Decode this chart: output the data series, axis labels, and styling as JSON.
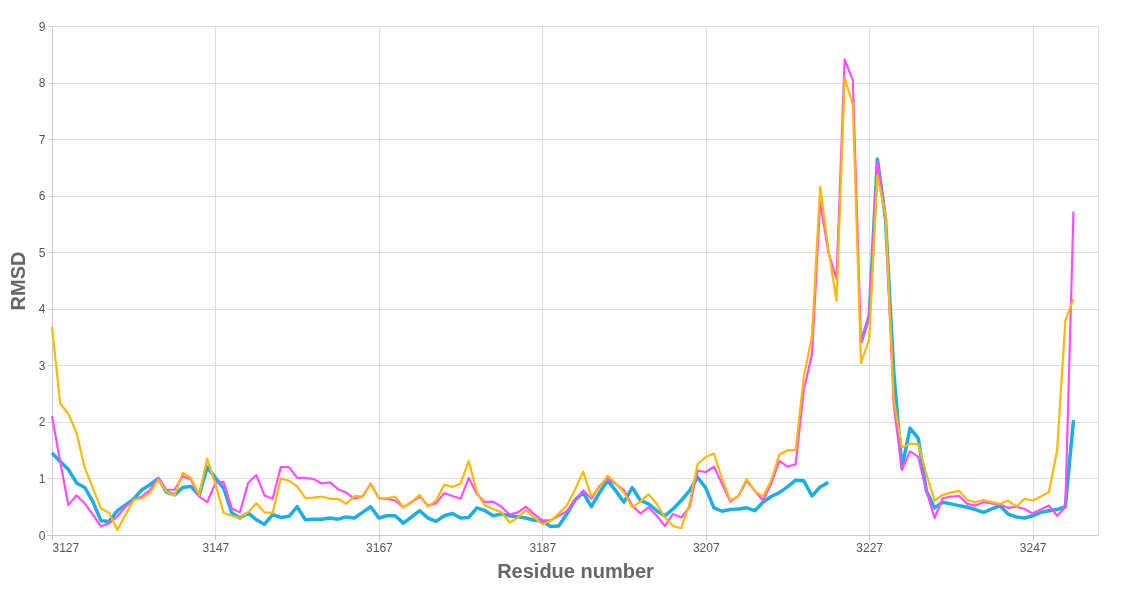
{
  "chart_data": {
    "type": "line",
    "xlabel": "Residue number",
    "ylabel": "RMSD",
    "x": [
      3127,
      3128,
      3129,
      3130,
      3131,
      3132,
      3133,
      3134,
      3135,
      3136,
      3137,
      3138,
      3139,
      3140,
      3141,
      3142,
      3143,
      3144,
      3145,
      3146,
      3147,
      3148,
      3149,
      3150,
      3151,
      3152,
      3153,
      3154,
      3155,
      3156,
      3157,
      3158,
      3159,
      3160,
      3161,
      3162,
      3163,
      3164,
      3165,
      3166,
      3167,
      3168,
      3169,
      3170,
      3171,
      3172,
      3173,
      3174,
      3175,
      3176,
      3177,
      3178,
      3179,
      3180,
      3181,
      3182,
      3183,
      3184,
      3185,
      3186,
      3187,
      3188,
      3189,
      3190,
      3191,
      3192,
      3193,
      3194,
      3195,
      3196,
      3197,
      3198,
      3199,
      3200,
      3201,
      3202,
      3203,
      3204,
      3205,
      3206,
      3207,
      3208,
      3209,
      3210,
      3211,
      3212,
      3213,
      3214,
      3215,
      3216,
      3217,
      3218,
      3219,
      3220,
      3221,
      3222,
      3223,
      3224,
      3225,
      3226,
      3227,
      3228,
      3229,
      3230,
      3231,
      3232,
      3233,
      3234,
      3235,
      3236,
      3237,
      3238,
      3239,
      3240,
      3241,
      3242,
      3243,
      3244,
      3245,
      3246,
      3247,
      3248,
      3249,
      3250,
      3251,
      3252
    ],
    "series": [
      {
        "color": "#1aaee6",
        "values": [
          1.45,
          1.3,
          1.16,
          0.92,
          0.84,
          0.59,
          0.25,
          0.24,
          0.43,
          0.53,
          0.64,
          0.8,
          0.89,
          1.0,
          0.76,
          0.71,
          0.84,
          0.86,
          0.7,
          1.2,
          1.01,
          0.83,
          0.39,
          0.3,
          0.39,
          0.27,
          0.19,
          0.36,
          0.31,
          0.33,
          0.5,
          0.27,
          0.28,
          0.28,
          0.3,
          0.28,
          0.32,
          0.3,
          0.4,
          0.5,
          0.3,
          0.34,
          0.34,
          0.21,
          0.32,
          0.43,
          0.3,
          0.24,
          0.34,
          0.38,
          0.3,
          0.31,
          0.48,
          0.43,
          0.34,
          0.37,
          0.34,
          0.32,
          0.3,
          0.26,
          0.25,
          0.15,
          0.16,
          0.37,
          0.62,
          0.75,
          0.5,
          0.75,
          0.96,
          0.78,
          0.58,
          0.84,
          0.61,
          0.55,
          0.43,
          0.34,
          0.46,
          0.61,
          0.78,
          1.02,
          0.83,
          0.48,
          0.42,
          0.45,
          0.46,
          0.48,
          0.43,
          0.58,
          0.68,
          0.75,
          0.85,
          0.97,
          0.96,
          0.69,
          0.85,
          0.93,
          null,
          null,
          null,
          3.4,
          3.87,
          6.65,
          5.59,
          2.9,
          1.19,
          1.89,
          1.71,
          0.78,
          0.48,
          0.58,
          0.55,
          0.52,
          0.49,
          0.45,
          0.4,
          0.46,
          0.52,
          0.37,
          0.32,
          0.3,
          0.34,
          0.4,
          0.43,
          0.45,
          0.5,
          2.03
        ]
      },
      {
        "color": "#ff4dff",
        "values": [
          2.1,
          1.3,
          0.53,
          0.7,
          0.56,
          0.36,
          0.15,
          0.21,
          0.33,
          0.5,
          0.62,
          0.68,
          0.8,
          1.01,
          0.8,
          0.8,
          1.04,
          0.98,
          0.68,
          0.58,
          0.92,
          0.94,
          0.47,
          0.4,
          0.92,
          1.06,
          0.7,
          0.64,
          1.2,
          1.2,
          1.01,
          1.01,
          0.99,
          0.91,
          0.93,
          0.81,
          0.75,
          0.64,
          0.68,
          0.91,
          0.65,
          0.64,
          0.61,
          0.49,
          0.58,
          0.68,
          0.52,
          0.56,
          0.74,
          0.69,
          0.64,
          1.01,
          0.72,
          0.58,
          0.59,
          0.5,
          0.36,
          0.4,
          0.5,
          0.37,
          0.26,
          0.26,
          0.34,
          0.42,
          0.61,
          0.79,
          0.64,
          0.87,
          0.99,
          0.9,
          0.79,
          0.52,
          0.38,
          0.49,
          0.34,
          0.16,
          0.37,
          0.31,
          0.49,
          1.14,
          1.11,
          1.21,
          0.9,
          0.59,
          0.69,
          0.96,
          0.78,
          0.61,
          0.9,
          1.31,
          1.21,
          1.25,
          2.57,
          3.19,
          5.89,
          5.0,
          4.53,
          8.41,
          8.04,
          3.4,
          3.87,
          6.6,
          5.6,
          2.3,
          1.15,
          1.48,
          1.38,
          0.78,
          0.3,
          0.65,
          0.68,
          0.69,
          0.55,
          0.52,
          0.58,
          0.56,
          0.54,
          0.48,
          0.5,
          0.46,
          0.38,
          0.45,
          0.52,
          0.34,
          0.49,
          5.72
        ]
      },
      {
        "color": "#ffb900",
        "values": [
          3.68,
          2.33,
          2.14,
          1.81,
          1.19,
          0.83,
          0.47,
          0.39,
          0.09,
          0.36,
          0.62,
          0.65,
          0.74,
          0.98,
          0.77,
          0.7,
          1.1,
          1.01,
          0.71,
          1.35,
          0.89,
          0.39,
          0.34,
          0.3,
          0.4,
          0.56,
          0.4,
          0.39,
          1.0,
          0.96,
          0.86,
          0.65,
          0.66,
          0.68,
          0.64,
          0.64,
          0.55,
          0.69,
          0.68,
          0.9,
          0.65,
          0.65,
          0.68,
          0.49,
          0.59,
          0.71,
          0.5,
          0.61,
          0.89,
          0.85,
          0.91,
          1.31,
          0.75,
          0.52,
          0.46,
          0.4,
          0.22,
          0.3,
          0.44,
          0.31,
          0.19,
          0.25,
          0.38,
          0.52,
          0.8,
          1.12,
          0.68,
          0.84,
          1.05,
          0.91,
          0.75,
          0.49,
          0.59,
          0.72,
          0.55,
          0.31,
          0.16,
          0.12,
          0.55,
          1.25,
          1.38,
          1.44,
          0.99,
          0.61,
          0.69,
          0.99,
          0.78,
          0.68,
          0.96,
          1.42,
          1.5,
          1.5,
          2.8,
          3.52,
          6.16,
          5.06,
          4.14,
          8.08,
          7.61,
          3.04,
          3.46,
          6.36,
          5.65,
          2.4,
          1.55,
          1.61,
          1.61,
          1.08,
          0.61,
          0.71,
          0.75,
          0.78,
          0.62,
          0.58,
          0.62,
          0.58,
          0.55,
          0.61,
          0.5,
          0.64,
          0.61,
          0.68,
          0.76,
          1.5,
          3.78,
          4.17
        ]
      }
    ],
    "xlim": [
      3127,
      3255
    ],
    "xticks": [
      3127,
      3147,
      3167,
      3187,
      3207,
      3227,
      3247
    ],
    "ylim": [
      0,
      9
    ],
    "yticks": [
      0,
      1,
      2,
      3,
      4,
      5,
      6,
      7,
      8,
      9
    ],
    "grid": true,
    "marker": "none",
    "line_style": "solid"
  }
}
